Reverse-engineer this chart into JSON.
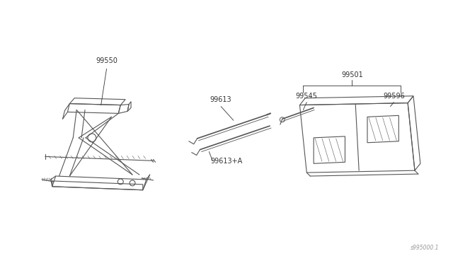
{
  "bg_color": "#ffffff",
  "line_color": "#555555",
  "label_color": "#333333",
  "fig_width": 6.4,
  "fig_height": 3.72,
  "dpi": 100,
  "watermark": "s995000.1",
  "label_fs": 7,
  "parts": {
    "jack_label": "99550",
    "rod1_label": "99613",
    "rod2_label": "99613+A",
    "assembly_label": "99501",
    "wrench_label": "99545",
    "bag_label": "99596"
  }
}
